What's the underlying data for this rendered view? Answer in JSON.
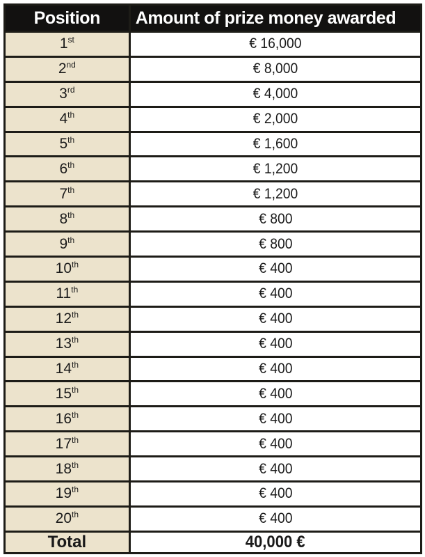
{
  "table": {
    "columns": [
      {
        "label": "Position"
      },
      {
        "label": "Amount of prize money awarded"
      }
    ],
    "rows": [
      {
        "position": "1",
        "ordinal_suffix": "st",
        "amount": "€ 16,000"
      },
      {
        "position": "2",
        "ordinal_suffix": "nd",
        "amount": "€ 8,000"
      },
      {
        "position": "3",
        "ordinal_suffix": "rd",
        "amount": "€ 4,000"
      },
      {
        "position": "4",
        "ordinal_suffix": "th",
        "amount": "€ 2,000"
      },
      {
        "position": "5",
        "ordinal_suffix": "th",
        "amount": "€ 1,600"
      },
      {
        "position": "6",
        "ordinal_suffix": "th",
        "amount": "€ 1,200"
      },
      {
        "position": "7",
        "ordinal_suffix": "th",
        "amount": "€ 1,200"
      },
      {
        "position": "8",
        "ordinal_suffix": "th",
        "amount": "€ 800"
      },
      {
        "position": "9",
        "ordinal_suffix": "th",
        "amount": "€ 800"
      },
      {
        "position": "10",
        "ordinal_suffix": "th",
        "amount": "€ 400"
      },
      {
        "position": "11",
        "ordinal_suffix": "th",
        "amount": "€ 400"
      },
      {
        "position": "12",
        "ordinal_suffix": "th",
        "amount": "€ 400"
      },
      {
        "position": "13",
        "ordinal_suffix": "th",
        "amount": "€ 400"
      },
      {
        "position": "14",
        "ordinal_suffix": "th",
        "amount": "€ 400"
      },
      {
        "position": "15",
        "ordinal_suffix": "th",
        "amount": "€ 400"
      },
      {
        "position": "16",
        "ordinal_suffix": "th",
        "amount": "€ 400"
      },
      {
        "position": "17",
        "ordinal_suffix": "th",
        "amount": "€ 400"
      },
      {
        "position": "18",
        "ordinal_suffix": "th",
        "amount": "€ 400"
      },
      {
        "position": "19",
        "ordinal_suffix": "th",
        "amount": "€ 400"
      },
      {
        "position": "20",
        "ordinal_suffix": "th",
        "amount": "€ 400"
      }
    ],
    "total": {
      "label": "Total",
      "amount": "40,000 €"
    }
  },
  "colors": {
    "header_bg": "#121110",
    "header_text": "#ffffff",
    "header_divider": "#f5f2ea",
    "position_col_bg": "#ece3cc",
    "amount_col_bg": "#ffffff",
    "border": "#1d1c17",
    "body_text": "#1a1a1a"
  }
}
